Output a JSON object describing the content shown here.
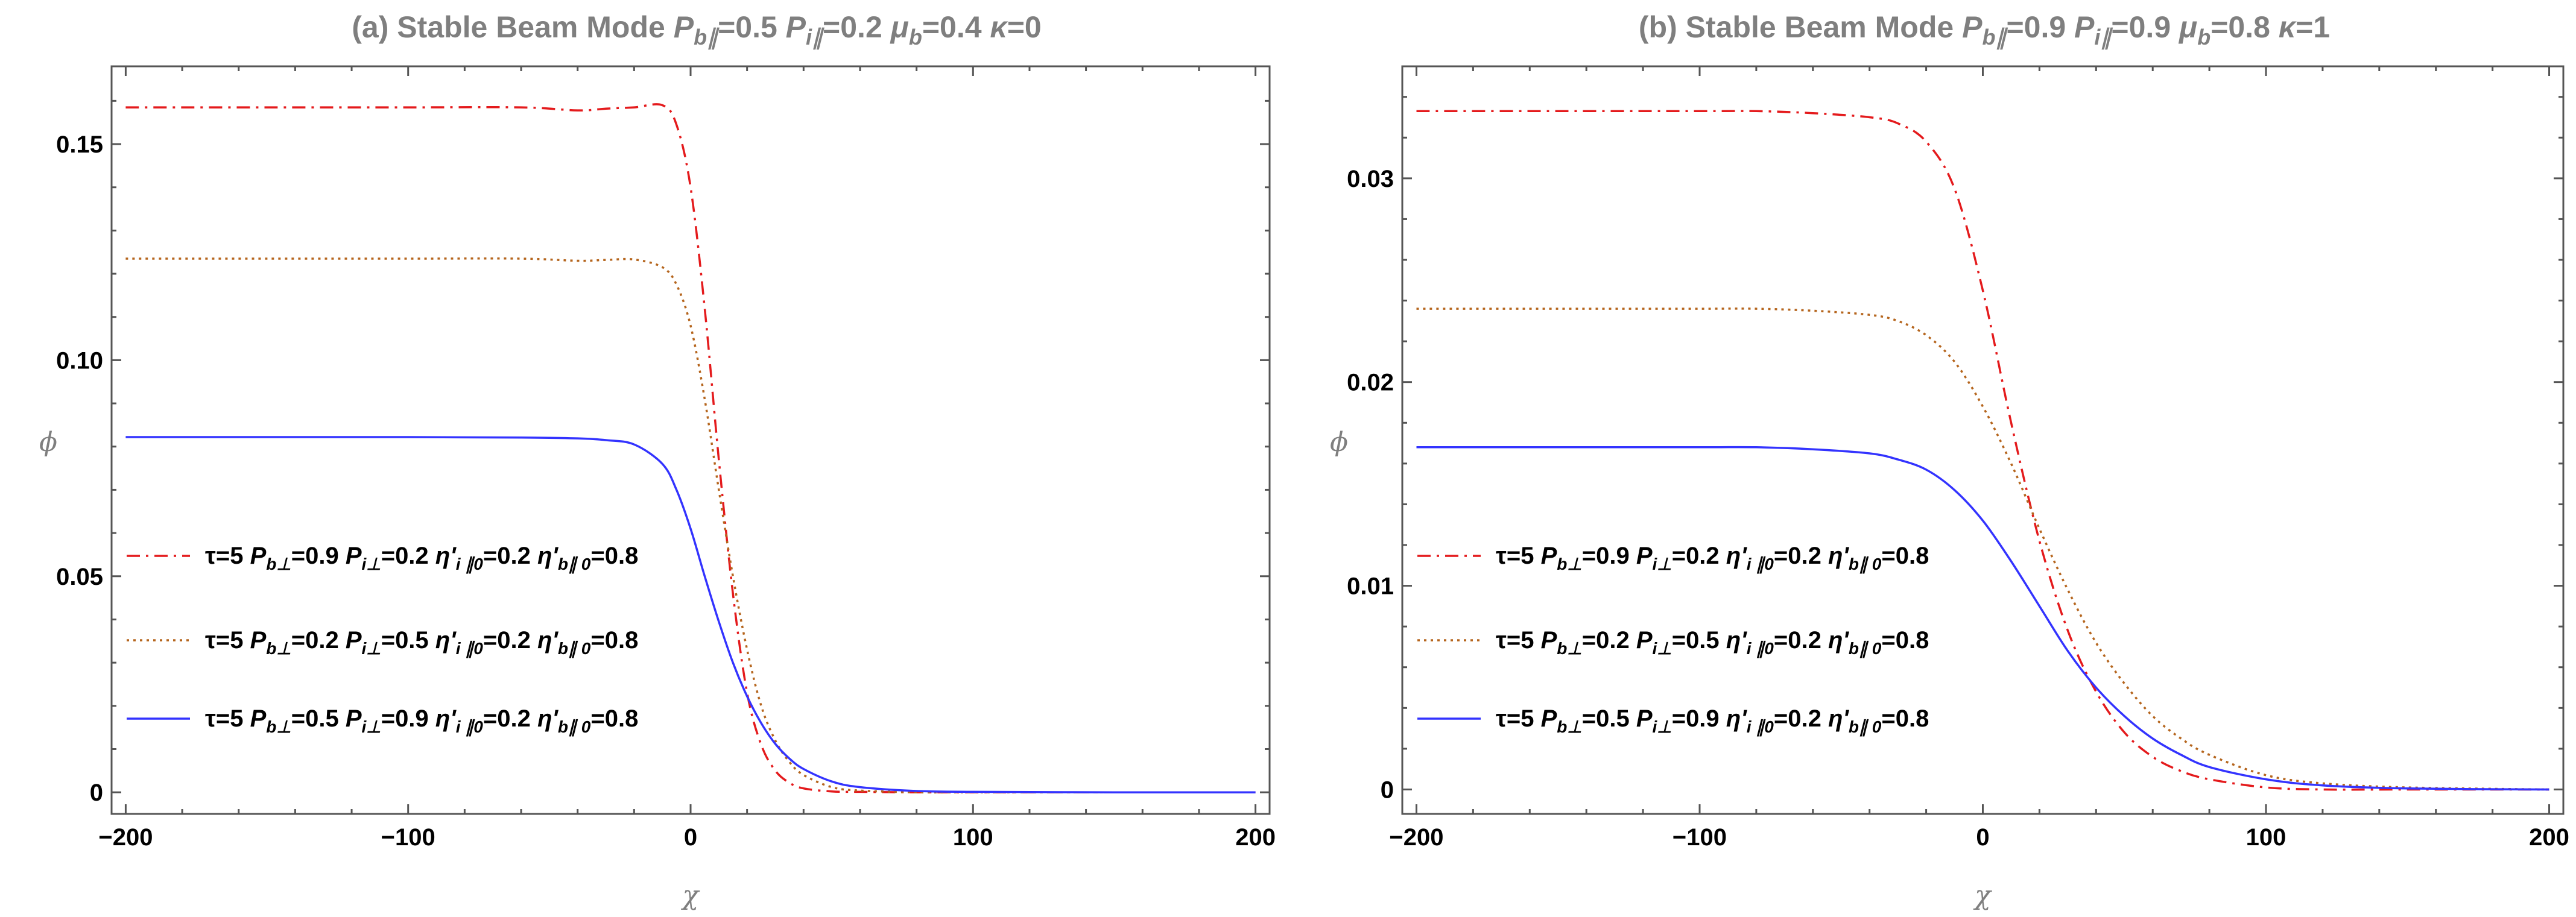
{
  "chart_data": [
    {
      "type": "line",
      "title_parts": {
        "lead": "(a) Stable Beam Mode ",
        "p1": "P",
        "p1_sub": "b∥",
        "p1_val": "=0.5 ",
        "p2": "P",
        "p2_sub": "i∥",
        "p2_val": "=0.2 ",
        "p3": "μ",
        "p3_sub": "b",
        "p3_val": "=0.4 ",
        "p4": "κ",
        "p4_val": "=0"
      },
      "xlabel": "χ",
      "ylabel": "ϕ",
      "xlim": [
        -205,
        205
      ],
      "ylim": [
        -0.005,
        0.168
      ],
      "xticks": [
        -200,
        -100,
        0,
        100,
        200
      ],
      "xtick_labels": [
        "−200",
        "−100",
        "0",
        "100",
        "200"
      ],
      "yticks": [
        0,
        0.05,
        0.1,
        0.15
      ],
      "ytick_labels": [
        "0",
        "0.05",
        "0.10",
        "0.15"
      ],
      "x": [
        -200,
        -150,
        -100,
        -60,
        -40,
        -30,
        -20,
        -10,
        -5,
        0,
        5,
        10,
        15,
        20,
        25,
        30,
        35,
        40,
        50,
        60,
        80,
        100,
        150,
        200
      ],
      "series": [
        {
          "name": "τ=5 P_b⊥=0.9 P_i⊥=0.2 η'_i∥0=0.2 η'_b∥0=0.8",
          "color": "#e41a1c",
          "dash": "dashdot",
          "values": [
            0.1585,
            0.1585,
            0.1585,
            0.1585,
            0.1578,
            0.1582,
            0.1585,
            0.159,
            0.1545,
            0.14,
            0.112,
            0.077,
            0.046,
            0.023,
            0.011,
            0.005,
            0.0022,
            0.0009,
            0.0002,
            0.0001,
            0,
            0,
            0,
            0
          ]
        },
        {
          "name": "τ=5 P_b⊥=0.2 P_i⊥=0.5 η'_i∥0=0.2 η'_b∥0=0.8",
          "color": "#b5651d",
          "dash": "dotted",
          "values": [
            0.1235,
            0.1235,
            0.1235,
            0.1235,
            0.123,
            0.1232,
            0.1233,
            0.1215,
            0.1175,
            0.108,
            0.091,
            0.07,
            0.05,
            0.033,
            0.02,
            0.012,
            0.007,
            0.004,
            0.0012,
            0.0004,
            0,
            0,
            0,
            0
          ]
        },
        {
          "name": "τ=5 P_b⊥=0.5 P_i⊥=0.9 η'_i∥0=0.2 η'_b∥0=0.8",
          "color": "#3333ff",
          "dash": "solid",
          "values": [
            0.0822,
            0.0822,
            0.0822,
            0.0821,
            0.0819,
            0.0815,
            0.0805,
            0.076,
            0.07,
            0.061,
            0.05,
            0.0395,
            0.03,
            0.0222,
            0.016,
            0.0112,
            0.0078,
            0.0054,
            0.0025,
            0.0012,
            0.0003,
            0.0001,
            0,
            0
          ]
        }
      ],
      "legend": {
        "entries": [
          {
            "prefix": "τ=5 ",
            "a": "P",
            "a_sub": "b⊥",
            "a_val": "=0.9 ",
            "b": "P",
            "b_sub": "i⊥",
            "b_val": "=0.2 ",
            "c": "η'",
            "c_sub": "i ∥0",
            "c_val": "=0.2 ",
            "d": "η'",
            "d_sub": "b∥ 0",
            "d_val": "=0.8"
          },
          {
            "prefix": "τ=5 ",
            "a": "P",
            "a_sub": "b⊥",
            "a_val": "=0.2 ",
            "b": "P",
            "b_sub": "i⊥",
            "b_val": "=0.5 ",
            "c": "η'",
            "c_sub": "i ∥0",
            "c_val": "=0.2 ",
            "d": "η'",
            "d_sub": "b∥ 0",
            "d_val": "=0.8"
          },
          {
            "prefix": "τ=5 ",
            "a": "P",
            "a_sub": "b⊥",
            "a_val": "=0.5 ",
            "b": "P",
            "b_sub": "i⊥",
            "b_val": "=0.9 ",
            "c": "η'",
            "c_sub": "i ∥0",
            "c_val": "=0.2 ",
            "d": "η'",
            "d_sub": "b∥ 0",
            "d_val": "=0.8"
          }
        ],
        "placement": "center-left"
      },
      "grid": false
    },
    {
      "type": "line",
      "title_parts": {
        "lead": "(b) Stable Beam Mode ",
        "p1": "P",
        "p1_sub": "b∥",
        "p1_val": "=0.9 ",
        "p2": "P",
        "p2_sub": "i∥",
        "p2_val": "=0.9 ",
        "p3": "μ",
        "p3_sub": "b",
        "p3_val": "=0.8 ",
        "p4": "κ",
        "p4_val": "=1"
      },
      "xlabel": "χ",
      "ylabel": "ϕ",
      "xlim": [
        -205,
        205
      ],
      "ylim": [
        -0.0012,
        0.0355
      ],
      "xticks": [
        -200,
        -100,
        0,
        100,
        200
      ],
      "xtick_labels": [
        "−200",
        "−100",
        "0",
        "100",
        "200"
      ],
      "yticks": [
        0,
        0.01,
        0.02,
        0.03
      ],
      "ytick_labels": [
        "0",
        "0.01",
        "0.02",
        "0.03"
      ],
      "x": [
        -200,
        -150,
        -100,
        -80,
        -60,
        -40,
        -30,
        -20,
        -10,
        0,
        10,
        20,
        30,
        40,
        50,
        60,
        70,
        80,
        100,
        120,
        150,
        200
      ],
      "series": [
        {
          "name": "τ=5 P_b⊥=0.9 P_i⊥=0.2 η'_i∥0=0.2 η'_b∥0=0.8",
          "color": "#e41a1c",
          "dash": "dashdot",
          "values": [
            0.0333,
            0.0333,
            0.0333,
            0.0333,
            0.0332,
            0.033,
            0.0327,
            0.0318,
            0.0295,
            0.0245,
            0.018,
            0.0122,
            0.0078,
            0.0048,
            0.0028,
            0.0016,
            0.0009,
            0.0005,
            0.0001,
            0,
            0,
            0
          ]
        },
        {
          "name": "τ=5 P_b⊥=0.2 P_i⊥=0.5 η'_i∥0=0.2 η'_b∥0=0.8",
          "color": "#b5651d",
          "dash": "dotted",
          "values": [
            0.0236,
            0.0236,
            0.0236,
            0.0236,
            0.0235,
            0.0233,
            0.023,
            0.0223,
            0.021,
            0.0188,
            0.016,
            0.0128,
            0.0098,
            0.0072,
            0.0052,
            0.0036,
            0.0025,
            0.0017,
            0.0007,
            0.0003,
            0.0001,
            0
          ]
        },
        {
          "name": "τ=5 P_b⊥=0.5 P_i⊥=0.9 η'_i∥0=0.2 η'_b∥0=0.8",
          "color": "#3333ff",
          "dash": "solid",
          "values": [
            0.0168,
            0.0168,
            0.0168,
            0.0168,
            0.0167,
            0.0165,
            0.0162,
            0.0157,
            0.0147,
            0.0132,
            0.0112,
            0.009,
            0.0068,
            0.005,
            0.0036,
            0.0025,
            0.0017,
            0.0011,
            0.0005,
            0.0002,
            5e-05,
            0
          ]
        }
      ],
      "legend": {
        "entries": [
          {
            "prefix": "τ=5 ",
            "a": "P",
            "a_sub": "b⊥",
            "a_val": "=0.9 ",
            "b": "P",
            "b_sub": "i⊥",
            "b_val": "=0.2 ",
            "c": "η'",
            "c_sub": "i ∥0",
            "c_val": "=0.2 ",
            "d": "η'",
            "d_sub": "b∥ 0",
            "d_val": "=0.8"
          },
          {
            "prefix": "τ=5 ",
            "a": "P",
            "a_sub": "b⊥",
            "a_val": "=0.2 ",
            "b": "P",
            "b_sub": "i⊥",
            "b_val": "=0.5 ",
            "c": "η'",
            "c_sub": "i ∥0",
            "c_val": "=0.2 ",
            "d": "η'",
            "d_sub": "b∥ 0",
            "d_val": "=0.8"
          },
          {
            "prefix": "τ=5 ",
            "a": "P",
            "a_sub": "b⊥",
            "a_val": "=0.5 ",
            "b": "P",
            "b_sub": "i⊥",
            "b_val": "=0.9 ",
            "c": "η'",
            "c_sub": "i ∥0",
            "c_val": "=0.2 ",
            "d": "η'",
            "d_sub": "b∥ 0",
            "d_val": "=0.8"
          }
        ],
        "placement": "center-left"
      },
      "grid": false
    }
  ]
}
